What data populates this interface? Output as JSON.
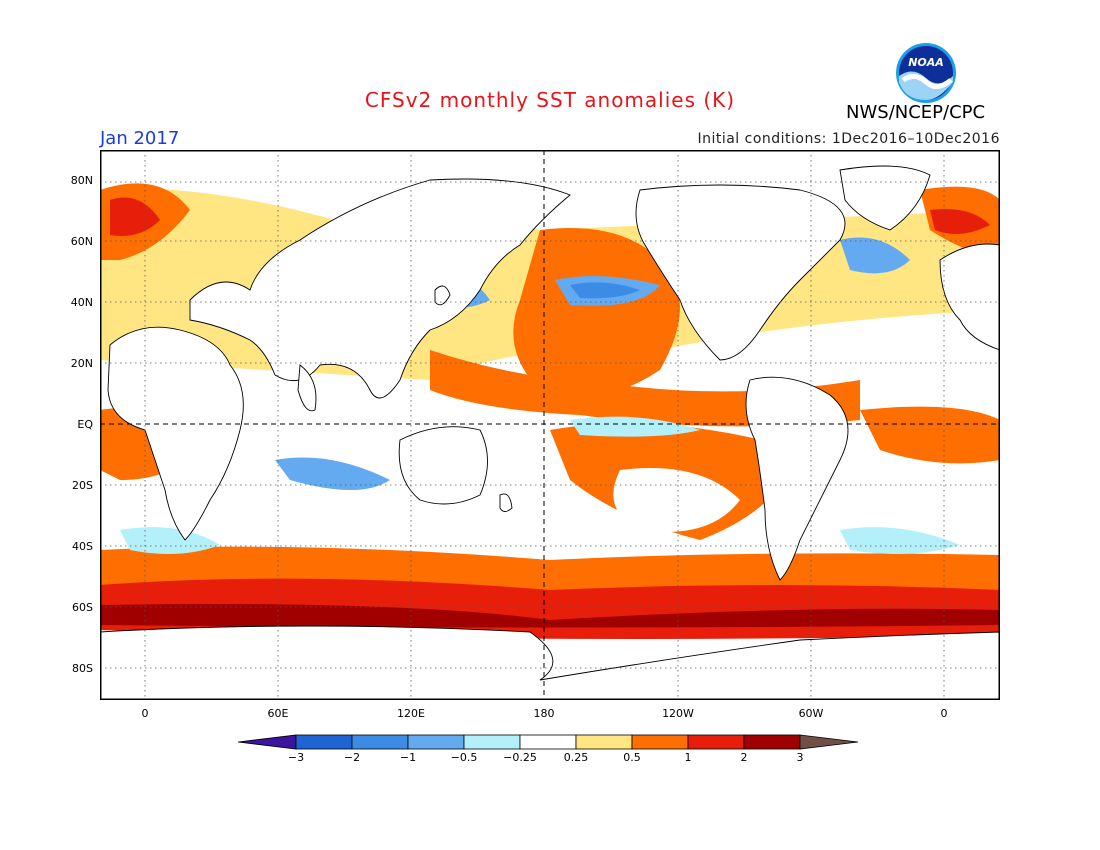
{
  "header": {
    "title": "CFSv2 monthly SST anomalies (K)",
    "org": "NWS/NCEP/CPC",
    "month": "Jan 2017",
    "init": "Initial conditions: 1Dec2016–10Dec2016",
    "logo_text": "NOAA"
  },
  "map": {
    "lat_labels": [
      "80N",
      "60N",
      "40N",
      "20N",
      "EQ",
      "20S",
      "40S",
      "60S",
      "80S"
    ],
    "lon_labels": [
      "0",
      "60E",
      "120E",
      "180",
      "120W",
      "60W",
      "0"
    ],
    "projection": "equirectangular, centered on 180",
    "lon_range": [
      -20,
      380
    ],
    "lat_range": [
      -90,
      90
    ],
    "gridlines": "dotted",
    "reference_lines": "dashed equator and dateline"
  },
  "colorbar": {
    "labels": [
      "−3",
      "−2",
      "−1",
      "−0.5",
      "−0.25",
      "0.25",
      "0.5",
      "1",
      "2",
      "3"
    ],
    "levels": [
      -3,
      -2,
      -1,
      -0.5,
      -0.25,
      0.25,
      0.5,
      1,
      2,
      3
    ],
    "colors": [
      "#3c14a0",
      "#1e64d2",
      "#3c8ce6",
      "#64aaf0",
      "#b4f0fa",
      "#ffffff",
      "#ffe682",
      "#ff6e00",
      "#e61e0a",
      "#a00000",
      "#6e5046"
    ]
  }
}
